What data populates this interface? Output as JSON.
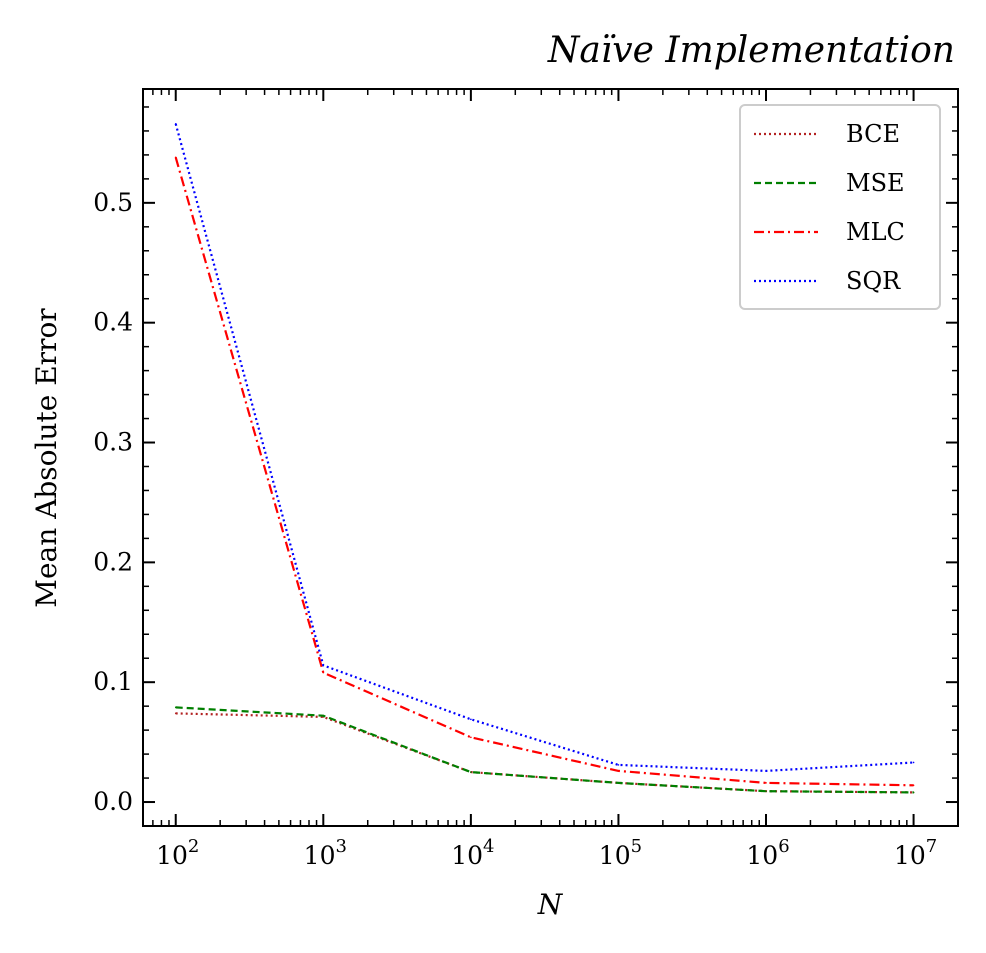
{
  "chart_data": {
    "type": "line",
    "title": "Naïve Implementation",
    "xlabel": "N",
    "ylabel": "Mean Absolute Error",
    "x_scale": "log",
    "x": [
      100,
      1000,
      10000,
      100000,
      1000000,
      10000000
    ],
    "x_ticks": [
      {
        "base": "10",
        "exp": "2",
        "value": 100
      },
      {
        "base": "10",
        "exp": "3",
        "value": 1000
      },
      {
        "base": "10",
        "exp": "4",
        "value": 10000
      },
      {
        "base": "10",
        "exp": "5",
        "value": 100000
      },
      {
        "base": "10",
        "exp": "6",
        "value": 1000000
      },
      {
        "base": "10",
        "exp": "7",
        "value": 10000000
      }
    ],
    "xlim": [
      60,
      20000000
    ],
    "ylim": [
      -0.02,
      0.595
    ],
    "y_ticks": [
      {
        "label": "0.0",
        "value": 0.0
      },
      {
        "label": "0.1",
        "value": 0.1
      },
      {
        "label": "0.2",
        "value": 0.2
      },
      {
        "label": "0.3",
        "value": 0.3
      },
      {
        "label": "0.4",
        "value": 0.4
      },
      {
        "label": "0.5",
        "value": 0.5
      }
    ],
    "y_minor_step": 0.02,
    "grid": false,
    "legend_position": "top-right",
    "series": [
      {
        "name": "BCE",
        "color": "#b22222",
        "dash": "2,3",
        "values": [
          0.074,
          0.071,
          0.025,
          0.016,
          0.009,
          0.008
        ]
      },
      {
        "name": "MSE",
        "color": "#007f00",
        "dash": "7,4",
        "values": [
          0.079,
          0.072,
          0.025,
          0.016,
          0.009,
          0.008
        ]
      },
      {
        "name": "MLC",
        "color": "#ff0000",
        "dash": "10,4,2,4",
        "values": [
          0.538,
          0.108,
          0.054,
          0.026,
          0.016,
          0.014
        ]
      },
      {
        "name": "SQR",
        "color": "#0000ff",
        "dash": "2,3",
        "values": [
          0.566,
          0.114,
          0.069,
          0.031,
          0.026,
          0.033
        ]
      }
    ]
  }
}
